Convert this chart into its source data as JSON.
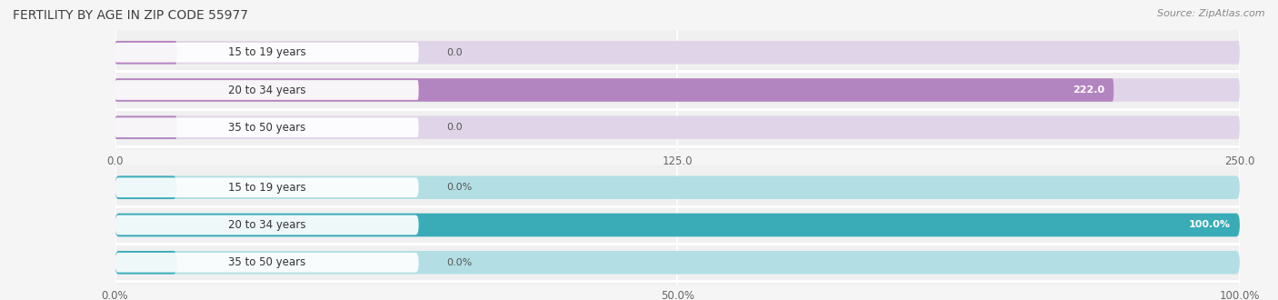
{
  "title": "FERTILITY BY AGE IN ZIP CODE 55977",
  "source_text": "Source: ZipAtlas.com",
  "top_chart": {
    "categories": [
      "15 to 19 years",
      "20 to 34 years",
      "35 to 50 years"
    ],
    "values": [
      0.0,
      222.0,
      0.0
    ],
    "bar_color": "#b385c0",
    "bar_bg_color": "#e0d5e8",
    "xlim": [
      0,
      250
    ],
    "xticks": [
      0.0,
      125.0,
      250.0
    ],
    "xtick_labels": [
      "0.0",
      "125.0",
      "250.0"
    ],
    "value_labels": [
      "0.0",
      "222.0",
      "0.0"
    ]
  },
  "bottom_chart": {
    "categories": [
      "15 to 19 years",
      "20 to 34 years",
      "35 to 50 years"
    ],
    "values": [
      0.0,
      100.0,
      0.0
    ],
    "bar_color": "#3aacb8",
    "bar_bg_color": "#b2dee4",
    "xlim": [
      0,
      100
    ],
    "xticks": [
      0.0,
      50.0,
      100.0
    ],
    "xtick_labels": [
      "0.0%",
      "50.0%",
      "100.0%"
    ],
    "value_labels": [
      "0.0%",
      "100.0%",
      "0.0%"
    ]
  },
  "title_color": "#404040",
  "bar_height": 0.62,
  "row_bg_color": "#f0f0f0",
  "row_sep_color": "#ffffff"
}
